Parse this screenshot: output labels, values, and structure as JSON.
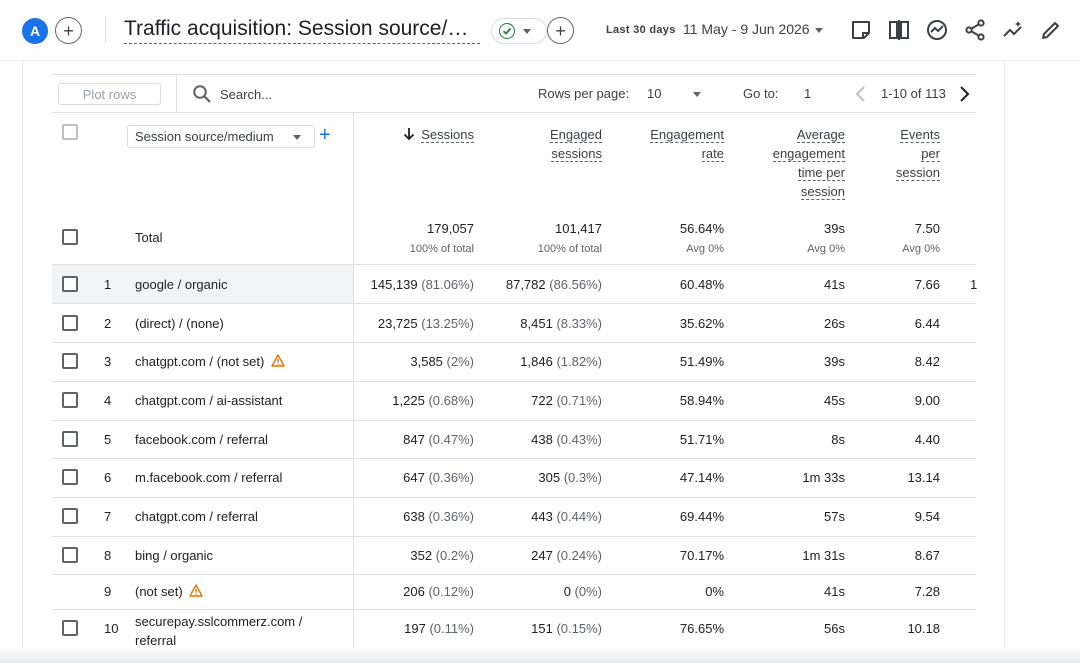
{
  "header": {
    "avatar_letter": "A",
    "title": "Traffic acquisition: Session source/medium",
    "date_label": "Last 30 days",
    "date_range": "11 May - 9 Jun 2026"
  },
  "toolbar": {
    "plot_rows_label": "Plot rows",
    "search_placeholder": "Search...",
    "rows_per_page_label": "Rows per page:",
    "rows_per_page_value": "10",
    "goto_label": "Go to:",
    "goto_value": "1",
    "page_range": "1-10 of 113"
  },
  "table": {
    "dimension_label": "Session source/medium",
    "columns": {
      "sessions": "Sessions",
      "engaged_1": "Engaged",
      "engaged_2": "sessions",
      "rate_1": "Engagement",
      "rate_2": "rate",
      "avg_1": "Average",
      "avg_2": "engagement",
      "avg_3": "time per",
      "avg_4": "session",
      "events_1": "Events",
      "events_2": "per",
      "events_3": "session"
    },
    "total": {
      "label": "Total",
      "sessions": "179,057",
      "sessions_sub": "100% of total",
      "engaged": "101,417",
      "engaged_sub": "100% of total",
      "rate": "56.64%",
      "rate_sub": "Avg 0%",
      "avg_time": "39s",
      "avg_time_sub": "Avg 0%",
      "events": "7.50",
      "events_sub": "Avg 0%"
    },
    "rows": [
      {
        "n": "1",
        "name": "google / organic",
        "sessions": "145,139",
        "sessions_pct": "(81.06%)",
        "engaged": "87,782",
        "engaged_pct": "(86.56%)",
        "rate": "60.48%",
        "avg_time": "41s",
        "events": "7.66"
      },
      {
        "n": "2",
        "name": "(direct) / (none)",
        "sessions": "23,725",
        "sessions_pct": "(13.25%)",
        "engaged": "8,451",
        "engaged_pct": "(8.33%)",
        "rate": "35.62%",
        "avg_time": "26s",
        "events": "6.44"
      },
      {
        "n": "3",
        "name": "chatgpt.com / (not set)",
        "sessions": "3,585",
        "sessions_pct": "(2%)",
        "engaged": "1,846",
        "engaged_pct": "(1.82%)",
        "rate": "51.49%",
        "avg_time": "39s",
        "events": "8.42"
      },
      {
        "n": "4",
        "name": "chatgpt.com / ai-assistant",
        "sessions": "1,225",
        "sessions_pct": "(0.68%)",
        "engaged": "722",
        "engaged_pct": "(0.71%)",
        "rate": "58.94%",
        "avg_time": "45s",
        "events": "9.00"
      },
      {
        "n": "5",
        "name": "facebook.com / referral",
        "sessions": "847",
        "sessions_pct": "(0.47%)",
        "engaged": "438",
        "engaged_pct": "(0.43%)",
        "rate": "51.71%",
        "avg_time": "8s",
        "events": "4.40"
      },
      {
        "n": "6",
        "name": "m.facebook.com / referral",
        "sessions": "647",
        "sessions_pct": "(0.36%)",
        "engaged": "305",
        "engaged_pct": "(0.3%)",
        "rate": "47.14%",
        "avg_time": "1m 33s",
        "events": "13.14"
      },
      {
        "n": "7",
        "name": "chatgpt.com / referral",
        "sessions": "638",
        "sessions_pct": "(0.36%)",
        "engaged": "443",
        "engaged_pct": "(0.44%)",
        "rate": "69.44%",
        "avg_time": "57s",
        "events": "9.54"
      },
      {
        "n": "8",
        "name": "bing / organic",
        "sessions": "352",
        "sessions_pct": "(0.2%)",
        "engaged": "247",
        "engaged_pct": "(0.24%)",
        "rate": "70.17%",
        "avg_time": "1m 31s",
        "events": "8.67"
      },
      {
        "n": "9",
        "name": "(not set)",
        "sessions": "206",
        "sessions_pct": "(0.12%)",
        "engaged": "0",
        "engaged_pct": "(0%)",
        "rate": "0%",
        "avg_time": "41s",
        "events": "7.28"
      },
      {
        "n": "10",
        "name_1": "securepay.sslcommerz.com /",
        "name_2": "referral",
        "sessions": "197",
        "sessions_pct": "(0.11%)",
        "engaged": "151",
        "engaged_pct": "(0.15%)",
        "rate": "76.65%",
        "avg_time": "56s",
        "events": "10.18"
      }
    ],
    "overflow_fragment": "1"
  },
  "colors": {
    "accent": "#1a73e8",
    "status_ok": "#188038",
    "warning": "#e37400"
  }
}
